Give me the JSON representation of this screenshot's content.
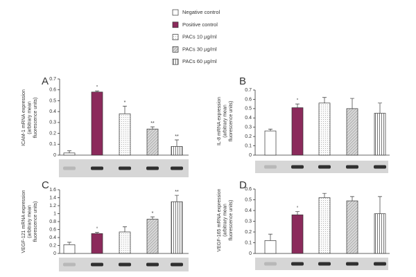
{
  "legend": [
    {
      "name": "Negative control",
      "color": "#ffffff",
      "pattern": "solid"
    },
    {
      "name": "Positive control",
      "color": "#8b2a5b",
      "pattern": "solid"
    },
    {
      "name": "PACs 10 µg/ml",
      "color": "#f2f2f2",
      "pattern": "dots"
    },
    {
      "name": "PACs 30 µg/ml",
      "color": "#c8c8c8",
      "pattern": "hatch"
    },
    {
      "name": "PACs 60 µg/ml",
      "color": "#ffffff",
      "pattern": "vstripes"
    }
  ],
  "chart_data": [
    {
      "type": "bar",
      "panel": "A",
      "ylabel": [
        "ICAM-1 mRNA expression",
        "(arbitrary mean",
        "fluorescence units)"
      ],
      "values": [
        0.02,
        0.58,
        0.38,
        0.24,
        0.08
      ],
      "errors": [
        0.02,
        0.01,
        0.07,
        0.02,
        0.06
      ],
      "annotations": [
        null,
        "°",
        "*",
        "**",
        "**"
      ],
      "ylim": [
        0,
        0.7
      ],
      "yticks": [
        0,
        0.1,
        0.2,
        0.3,
        0.4,
        0.5,
        0.6,
        0.7
      ]
    },
    {
      "type": "bar",
      "panel": "B",
      "ylabel": [
        "IL-8 mRNA expression",
        "(arbitrary mean",
        "fluorescence units)"
      ],
      "values": [
        0.26,
        0.51,
        0.56,
        0.5,
        0.45
      ],
      "errors": [
        0.02,
        0.04,
        0.06,
        0.11,
        0.11
      ],
      "annotations": [
        null,
        "°",
        null,
        null,
        null
      ],
      "ylim": [
        0,
        0.7
      ],
      "yticks": [
        0,
        0.1,
        0.2,
        0.3,
        0.4,
        0.5,
        0.6,
        0.7
      ]
    },
    {
      "type": "bar",
      "panel": "C",
      "ylabel": [
        "VEGF-121 mRNA expression",
        "(arbitrary mean",
        "fluorescence units)"
      ],
      "values": [
        0.22,
        0.5,
        0.54,
        0.86,
        1.3
      ],
      "errors": [
        0.06,
        0.03,
        0.13,
        0.06,
        0.16
      ],
      "annotations": [
        null,
        "°",
        null,
        "*",
        "**"
      ],
      "ylim": [
        0,
        1.6
      ],
      "yticks": [
        0,
        0.2,
        0.4,
        0.6,
        0.8,
        1,
        1.2,
        1.4,
        1.6
      ]
    },
    {
      "type": "bar",
      "panel": "D",
      "ylabel": [
        "VEGF-165 mRNA expression",
        "(arbitrary mean",
        "fluorescence units)"
      ],
      "values": [
        0.12,
        0.36,
        0.52,
        0.49,
        0.37
      ],
      "errors": [
        0.06,
        0.03,
        0.04,
        0.04,
        0.16
      ],
      "annotations": [
        null,
        "°",
        null,
        null,
        null
      ],
      "ylim": [
        0,
        0.6
      ],
      "yticks": [
        0,
        0.1,
        0.2,
        0.3,
        0.4,
        0.5,
        0.6
      ]
    }
  ]
}
